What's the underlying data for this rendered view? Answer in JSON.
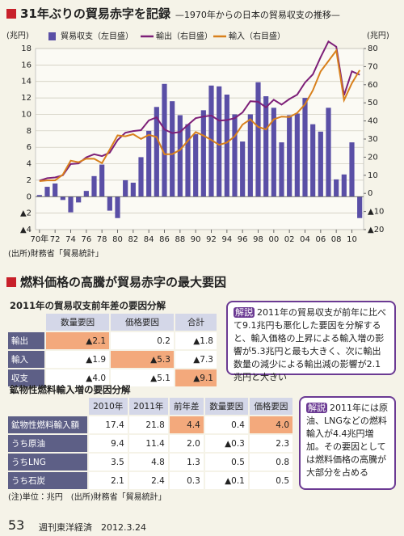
{
  "chart_data": {
    "type": "bar",
    "title": "31年ぶりの貿易赤字を記録",
    "subtitle": "—1970年からの日本の貿易収支の推移—",
    "y_label": "(兆円)",
    "y2_label": "(兆円)",
    "categories": [
      "70年",
      null,
      "72",
      null,
      "74",
      null,
      "76",
      null,
      "78",
      null,
      "80",
      null,
      "82",
      null,
      "84",
      null,
      "86",
      null,
      "88",
      null,
      "90",
      null,
      "92",
      null,
      "94",
      null,
      "96",
      null,
      "98",
      null,
      "00",
      null,
      "02",
      null,
      "04",
      null,
      "06",
      null,
      "08",
      null,
      "10",
      null
    ],
    "series": [
      {
        "name": "貿易収支（左目盛）",
        "type": "bar",
        "color": "#5a4fa6",
        "values": [
          0.2,
          1.2,
          1.6,
          -0.4,
          -1.9,
          -0.7,
          0.7,
          2.5,
          3.9,
          -1.7,
          -2.6,
          2.0,
          1.7,
          4.8,
          8.0,
          10.9,
          13.7,
          11.6,
          9.9,
          8.8,
          7.6,
          10.5,
          13.5,
          13.4,
          12.4,
          10.0,
          6.7,
          10.0,
          13.9,
          12.2,
          10.8,
          6.6,
          9.9,
          10.1,
          12.0,
          8.8,
          7.9,
          10.8,
          2.1,
          2.7,
          6.6,
          -2.6
        ]
      },
      {
        "name": "輸出（右目盛）",
        "type": "line",
        "axis": "y2",
        "color": "#7d1f78",
        "values": [
          7.0,
          8.4,
          8.8,
          10.0,
          16.2,
          16.5,
          19.9,
          21.6,
          20.6,
          22.5,
          29.4,
          33.5,
          34.4,
          34.9,
          40.3,
          42.0,
          35.3,
          33.3,
          33.9,
          37.8,
          41.5,
          42.4,
          43.0,
          40.2,
          40.5,
          41.5,
          44.7,
          50.9,
          50.6,
          47.5,
          51.7,
          49.0,
          52.1,
          54.5,
          61.2,
          65.7,
          75.2,
          83.9,
          81.0,
          54.2,
          67.4,
          65.5
        ]
      },
      {
        "name": "輸入（右目盛）",
        "type": "line",
        "axis": "y2",
        "color": "#d8801c",
        "values": [
          6.8,
          7.2,
          7.2,
          10.4,
          18.1,
          17.2,
          19.2,
          19.1,
          16.7,
          24.2,
          32.0,
          31.5,
          32.7,
          30.1,
          32.3,
          31.1,
          21.6,
          21.7,
          24.0,
          29.0,
          33.9,
          31.9,
          29.5,
          26.8,
          28.1,
          31.5,
          38.0,
          40.9,
          36.7,
          35.3,
          40.9,
          42.4,
          42.2,
          44.4,
          49.2,
          56.9,
          67.3,
          73.1,
          78.9,
          51.5,
          60.8,
          68.1
        ]
      }
    ],
    "ylim": [
      -4,
      18
    ],
    "yticks": [
      {
        "value": -4,
        "label": "▲4"
      },
      {
        "value": -2,
        "label": "▲2"
      },
      0,
      2,
      4,
      6,
      8,
      10,
      12,
      14,
      16,
      18
    ],
    "y2lim": [
      -20,
      80
    ],
    "y2ticks": [
      {
        "value": -20,
        "label": "▲20"
      },
      {
        "value": -10,
        "label": "▲10"
      },
      0,
      10,
      20,
      30,
      40,
      50,
      60,
      70,
      80
    ],
    "grid": true,
    "source": "(出所)財務省「貿易統計」"
  },
  "section2": {
    "title": "燃料価格の高騰が貿易赤字の最大要因"
  },
  "table1": {
    "title": "2011年の貿易収支前年差の要因分解",
    "headers": [
      "数量要因",
      "価格要因",
      "合計"
    ],
    "rows": [
      {
        "label": "輸出",
        "cells": [
          {
            "text": "▲2.1",
            "highlight": true
          },
          "0.2",
          "▲1.8"
        ]
      },
      {
        "label": "輸入",
        "cells": [
          "▲1.9",
          {
            "text": "▲5.3",
            "highlight": true
          },
          "▲7.3"
        ]
      },
      {
        "label": "収支",
        "cells": [
          "▲4.0",
          "▲5.1",
          {
            "text": "▲9.1",
            "highlight": true
          }
        ]
      }
    ]
  },
  "note1": {
    "tag": "解説",
    "text": "2011年の貿易収支が前年に比べて9.1兆円も悪化した要因を分解すると、輸入価格の上昇による輸入増の影響が5.3兆円と最も大きく、次に輸出数量の減少による輸出減の影響が2.1兆円と大きい"
  },
  "table2": {
    "title": "鉱物性燃料輸入増の要因分解",
    "headers": [
      "2010年",
      "2011年",
      "前年差",
      "数量要因",
      "価格要因"
    ],
    "rows": [
      {
        "label": "鉱物性燃料輸入額",
        "cells": [
          "17.4",
          "21.8",
          {
            "text": "4.4",
            "highlight": true
          },
          "0.4",
          {
            "text": "4.0",
            "highlight": true
          }
        ]
      },
      {
        "label": "うち原油",
        "cells": [
          "9.4",
          "11.4",
          "2.0",
          "▲0.3",
          "2.3"
        ]
      },
      {
        "label": "うちLNG",
        "cells": [
          "3.5",
          "4.8",
          "1.3",
          "0.5",
          "0.8"
        ]
      },
      {
        "label": "うち石炭",
        "cells": [
          "2.1",
          "2.4",
          "0.3",
          "▲0.1",
          "0.5"
        ]
      }
    ]
  },
  "note2": {
    "tag": "解説",
    "text": "2011年には原油、LNGなどの燃料輸入が4.4兆円増加。その要因としては燃料価格の高騰が大部分を占める"
  },
  "footnote": "(注)単位：兆円　(出所)財務省「貿易統計」",
  "footer": {
    "page": "53",
    "magazine": "週刊東洋経済　2012.3.24"
  }
}
